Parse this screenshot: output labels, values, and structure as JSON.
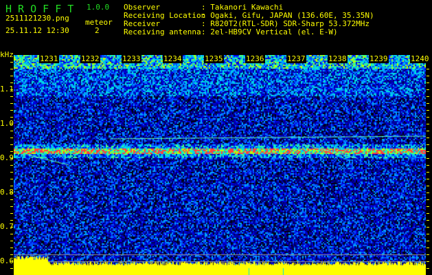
{
  "header": {
    "app_name": "H R O F F T",
    "version": "1.0.0",
    "filename": "2511121230.png",
    "datetime": "25.11.12 12:30",
    "meteor_label": "meteor",
    "meteor_count": "2",
    "info": [
      {
        "label": "Observer",
        "value": ": Takanori Kawachi"
      },
      {
        "label": "Receiving Location",
        "value": ": Ogaki, Gifu, JAPAN (136.60E, 35.35N)"
      },
      {
        "label": "Receiver",
        "value": ": R820T2(RTL-SDR) SDR-Sharp 53.372MHz"
      },
      {
        "label": "Receiving antenna",
        "value": ": 2el-HB9CV Vertical (el. E-W)"
      }
    ]
  },
  "axis": {
    "unit": "kHz",
    "y_labels": [
      "1.1",
      "1.0",
      "0.9",
      "0.8",
      "0.7",
      "0.6"
    ],
    "time_labels": [
      "1231",
      "1232",
      "1233",
      "1234",
      "1235",
      "1236",
      "1237",
      "1238",
      "1239",
      "1240"
    ]
  },
  "colors": {
    "text": "#ffff00",
    "title": "#22dd22",
    "background": "#000000"
  }
}
